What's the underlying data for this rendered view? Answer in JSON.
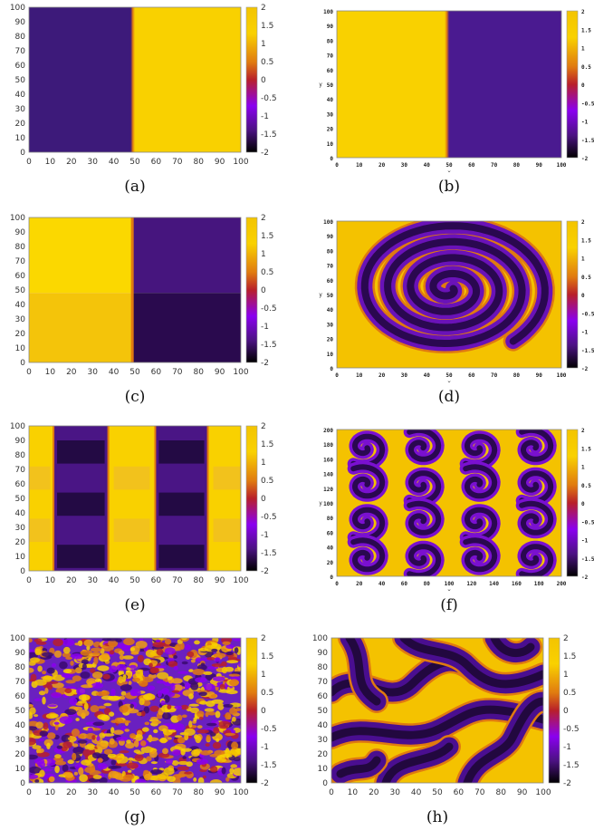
{
  "figure": {
    "panels": [
      {
        "caption": "(a)",
        "style": "plain",
        "pattern": "split-lr",
        "xticks": [
          "0",
          "10",
          "20",
          "30",
          "40",
          "50",
          "60",
          "70",
          "80",
          "90",
          "100"
        ],
        "yticks": [
          "0",
          "10",
          "20",
          "30",
          "40",
          "50",
          "60",
          "70",
          "80",
          "90",
          "100"
        ]
      },
      {
        "caption": "(b)",
        "style": "gnu",
        "pattern": "split-rl",
        "xticks": [
          "0",
          "10",
          "20",
          "30",
          "40",
          "50",
          "60",
          "70",
          "80",
          "90",
          "100"
        ],
        "yticks": [
          "0",
          "10",
          "20",
          "30",
          "40",
          "50",
          "60",
          "70",
          "80",
          "90",
          "100"
        ],
        "xlabel": "x",
        "ylabel": "y"
      },
      {
        "caption": "(c)",
        "style": "plain",
        "pattern": "quadrants",
        "xticks": [
          "0",
          "10",
          "20",
          "30",
          "40",
          "50",
          "60",
          "70",
          "80",
          "90",
          "100"
        ],
        "yticks": [
          "0",
          "10",
          "20",
          "30",
          "40",
          "50",
          "60",
          "70",
          "80",
          "90",
          "100"
        ]
      },
      {
        "caption": "(d)",
        "style": "gnu",
        "pattern": "spiral",
        "xticks": [
          "0",
          "10",
          "20",
          "30",
          "40",
          "50",
          "60",
          "70",
          "80",
          "90",
          "100"
        ],
        "yticks": [
          "0",
          "10",
          "20",
          "30",
          "40",
          "50",
          "60",
          "70",
          "80",
          "90",
          "100"
        ],
        "xlabel": "x",
        "ylabel": "y"
      },
      {
        "caption": "(e)",
        "style": "plain",
        "pattern": "stripes",
        "xticks": [
          "0",
          "10",
          "20",
          "30",
          "40",
          "50",
          "60",
          "70",
          "80",
          "90",
          "100"
        ],
        "yticks": [
          "0",
          "10",
          "20",
          "30",
          "40",
          "50",
          "60",
          "70",
          "80",
          "90",
          "100"
        ]
      },
      {
        "caption": "(f)",
        "style": "gnu",
        "pattern": "tiles",
        "xticks": [
          "0",
          "20",
          "40",
          "60",
          "80",
          "100",
          "120",
          "140",
          "160",
          "180",
          "200"
        ],
        "yticks": [
          "0",
          "20",
          "40",
          "60",
          "80",
          "100",
          "120",
          "140",
          "160",
          "180",
          "200"
        ],
        "xlabel": "x",
        "ylabel": "y"
      },
      {
        "caption": "(g)",
        "style": "plain",
        "pattern": "noise",
        "xticks": [
          "0",
          "10",
          "20",
          "30",
          "40",
          "50",
          "60",
          "70",
          "80",
          "90",
          "100"
        ],
        "yticks": [
          "0",
          "10",
          "20",
          "30",
          "40",
          "50",
          "60",
          "70",
          "80",
          "90",
          "100"
        ]
      },
      {
        "caption": "(h)",
        "style": "plain",
        "pattern": "labyrinth",
        "xticks": [
          "0",
          "10",
          "20",
          "30",
          "40",
          "50",
          "60",
          "70",
          "80",
          "90",
          "100"
        ],
        "yticks": [
          "0",
          "10",
          "20",
          "30",
          "40",
          "50",
          "60",
          "70",
          "80",
          "90",
          "100"
        ]
      }
    ],
    "colorbar_ticks": [
      "2",
      "1.5",
      "1",
      "0.5",
      "0",
      "-0.5",
      "-1",
      "-1.5",
      "-2"
    ],
    "colors": {
      "yellow": "#f9d100",
      "deep_yellow": "#f3c400",
      "orange": "#e07a10",
      "red": "#b8202a",
      "purple": "#5a1a9a",
      "violet": "#8a00f0",
      "dark_purple": "#2d0a55",
      "mid_purple": "#4a1280"
    }
  },
  "chart_data": [
    {
      "type": "heatmap",
      "panel": "(a)",
      "xlim": [
        0,
        100
      ],
      "ylim": [
        0,
        100
      ],
      "zlim": [
        -2,
        2
      ],
      "description_values": {
        "x_boundary": 49,
        "left_value": -1.2,
        "right_value": 1.8
      }
    },
    {
      "type": "heatmap",
      "panel": "(b)",
      "xlim": [
        0,
        100
      ],
      "ylim": [
        0,
        100
      ],
      "zlim": [
        -2,
        2
      ],
      "description_values": {
        "x_boundary": 49,
        "left_value": 1.8,
        "right_value": -1.2
      }
    },
    {
      "type": "heatmap",
      "panel": "(c)",
      "xlim": [
        0,
        100
      ],
      "ylim": [
        0,
        100
      ],
      "zlim": [
        -2,
        2
      ],
      "description_values": {
        "x_boundary": 49,
        "y_boundary": 48
      }
    },
    {
      "type": "heatmap",
      "panel": "(d)",
      "xlim": [
        0,
        100
      ],
      "ylim": [
        0,
        100
      ],
      "zlim": [
        -2,
        2
      ]
    },
    {
      "type": "heatmap",
      "panel": "(e)",
      "xlim": [
        0,
        100
      ],
      "ylim": [
        0,
        100
      ],
      "zlim": [
        -2,
        2
      ]
    },
    {
      "type": "heatmap",
      "panel": "(f)",
      "xlim": [
        0,
        200
      ],
      "ylim": [
        0,
        200
      ],
      "zlim": [
        -2,
        2
      ]
    },
    {
      "type": "heatmap",
      "panel": "(g)",
      "xlim": [
        0,
        100
      ],
      "ylim": [
        0,
        100
      ],
      "zlim": [
        -2,
        2
      ]
    },
    {
      "type": "heatmap",
      "panel": "(h)",
      "xlim": [
        0,
        100
      ],
      "ylim": [
        0,
        100
      ],
      "zlim": [
        -2,
        2
      ]
    }
  ]
}
